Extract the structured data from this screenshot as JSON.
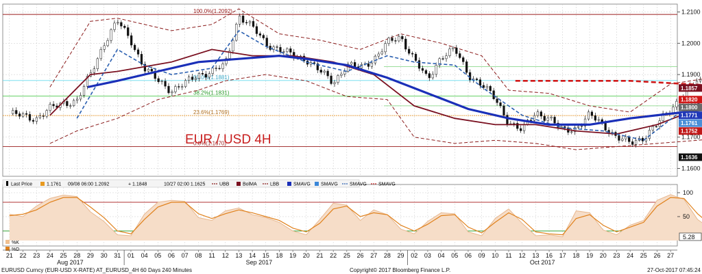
{
  "chart_data": {
    "type": "candlestick",
    "title": "EUR / USD 4H",
    "y_axis": {
      "range": [
        1.1575,
        1.2125
      ],
      "ticks": [
        "1.2100",
        "1.2000",
        "1.1900",
        "1.1800",
        "1.1700",
        "1.1600"
      ],
      "grid": true
    },
    "x_axis": {
      "days": [
        "21",
        "22",
        "23",
        "24",
        "25",
        "28",
        "29",
        "30",
        "31",
        "01",
        "04",
        "05",
        "06",
        "07",
        "08",
        "11",
        "12",
        "13",
        "14",
        "15",
        "18",
        "19",
        "20",
        "21",
        "22",
        "25",
        "26",
        "27",
        "28",
        "29",
        "02",
        "03",
        "04",
        "05",
        "06",
        "09",
        "10",
        "11",
        "12",
        "13",
        "16",
        "17",
        "18",
        "19",
        "20",
        "23",
        "24",
        "25",
        "26",
        "27"
      ],
      "months": [
        {
          "label": "Aug 2017",
          "at_day_index": 5
        },
        {
          "label": "Sep 2017",
          "at_day_index": 19
        },
        {
          "label": "Oct 2017",
          "at_day_index": 40
        }
      ]
    },
    "price_path": [
      [
        0,
        1.1775
      ],
      [
        2,
        1.176
      ],
      [
        3,
        1.179
      ],
      [
        4,
        1.181
      ],
      [
        5,
        1.1815
      ],
      [
        6,
        1.19
      ],
      [
        7,
        1.2
      ],
      [
        8,
        1.207
      ],
      [
        9,
        1.201
      ],
      [
        10,
        1.192
      ],
      [
        11,
        1.188
      ],
      [
        12,
        1.185
      ],
      [
        13,
        1.187
      ],
      [
        14,
        1.19
      ],
      [
        15,
        1.191
      ],
      [
        16,
        1.193
      ],
      [
        17,
        1.209
      ],
      [
        18,
        1.205
      ],
      [
        19,
        1.2
      ],
      [
        20,
        1.198
      ],
      [
        21,
        1.196
      ],
      [
        22,
        1.195
      ],
      [
        23,
        1.191
      ],
      [
        24,
        1.1875
      ],
      [
        25,
        1.193
      ],
      [
        26,
        1.192
      ],
      [
        27,
        1.195
      ],
      [
        28,
        1.2
      ],
      [
        29,
        1.202
      ],
      [
        30,
        1.195
      ],
      [
        31,
        1.188
      ],
      [
        32,
        1.196
      ],
      [
        33,
        1.198
      ],
      [
        34,
        1.19
      ],
      [
        35,
        1.187
      ],
      [
        36,
        1.182
      ],
      [
        37,
        1.175
      ],
      [
        38,
        1.172
      ],
      [
        39,
        1.178
      ],
      [
        40,
        1.176
      ],
      [
        41,
        1.172
      ],
      [
        42,
        1.173
      ],
      [
        43,
        1.177
      ],
      [
        44,
        1.174
      ],
      [
        45,
        1.17
      ],
      [
        46,
        1.168
      ],
      [
        47,
        1.17
      ],
      [
        48,
        1.174
      ],
      [
        49,
        1.179
      ],
      [
        50,
        1.184
      ],
      [
        51,
        1.188
      ],
      [
        52,
        1.185
      ],
      [
        53,
        1.182
      ],
      [
        54,
        1.18
      ],
      [
        55,
        1.176
      ],
      [
        56,
        1.179
      ],
      [
        57,
        1.186
      ],
      [
        58,
        1.182
      ],
      [
        59,
        1.179
      ],
      [
        60,
        1.177
      ],
      [
        61,
        1.176
      ],
      [
        62,
        1.183
      ],
      [
        63,
        1.18
      ],
      [
        63.6,
        1.168
      ],
      [
        64,
        1.164
      ]
    ],
    "indicators": {
      "sma_blue": [
        [
          5.8,
          1.186
        ],
        [
          8,
          1.188
        ],
        [
          11,
          1.191
        ],
        [
          14,
          1.194
        ],
        [
          17,
          1.195
        ],
        [
          20,
          1.196
        ],
        [
          22,
          1.195
        ],
        [
          25,
          1.193
        ],
        [
          28,
          1.189
        ],
        [
          31,
          1.184
        ],
        [
          34,
          1.179
        ],
        [
          37,
          1.176
        ],
        [
          40,
          1.174
        ],
        [
          43,
          1.174
        ],
        [
          46,
          1.176
        ],
        [
          49,
          1.1775
        ],
        [
          52,
          1.179
        ],
        [
          55,
          1.18
        ],
        [
          58,
          1.181
        ],
        [
          61,
          1.18
        ],
        [
          63,
          1.179
        ],
        [
          64.5,
          1.1775
        ]
      ],
      "bollinger_ma": [
        [
          3,
          1.177
        ],
        [
          6,
          1.19
        ],
        [
          8,
          1.191
        ],
        [
          12,
          1.194
        ],
        [
          15,
          1.198
        ],
        [
          18,
          1.196
        ],
        [
          21,
          1.196
        ],
        [
          24,
          1.194
        ],
        [
          27,
          1.19
        ],
        [
          30,
          1.18
        ],
        [
          33,
          1.176
        ],
        [
          36,
          1.174
        ],
        [
          39,
          1.174
        ],
        [
          42,
          1.172
        ],
        [
          45,
          1.171
        ],
        [
          48,
          1.174
        ],
        [
          51,
          1.179
        ],
        [
          54,
          1.178
        ],
        [
          57,
          1.178
        ],
        [
          60,
          1.177
        ],
        [
          63,
          1.178
        ],
        [
          64.5,
          1.177
        ]
      ],
      "bollinger_upper": [
        [
          3,
          1.186
        ],
        [
          6,
          1.207
        ],
        [
          8,
          1.208
        ],
        [
          12,
          1.204
        ],
        [
          15,
          1.206
        ],
        [
          17,
          1.211
        ],
        [
          20,
          1.203
        ],
        [
          23,
          1.201
        ],
        [
          26,
          1.198
        ],
        [
          29,
          1.203
        ],
        [
          32,
          1.2
        ],
        [
          35,
          1.196
        ],
        [
          37,
          1.185
        ],
        [
          40,
          1.184
        ],
        [
          43,
          1.18
        ],
        [
          46,
          1.178
        ],
        [
          49,
          1.187
        ],
        [
          52,
          1.189
        ],
        [
          55,
          1.188
        ],
        [
          58,
          1.188
        ],
        [
          61,
          1.186
        ],
        [
          63,
          1.184
        ],
        [
          64.5,
          1.186
        ]
      ],
      "bollinger_lower": [
        [
          3,
          1.168
        ],
        [
          5,
          1.172
        ],
        [
          8,
          1.176
        ],
        [
          11,
          1.182
        ],
        [
          14,
          1.185
        ],
        [
          16,
          1.188
        ],
        [
          19,
          1.19
        ],
        [
          22,
          1.188
        ],
        [
          25,
          1.183
        ],
        [
          28,
          1.182
        ],
        [
          30,
          1.17
        ],
        [
          33,
          1.168
        ],
        [
          36,
          1.169
        ],
        [
          39,
          1.168
        ],
        [
          42,
          1.166
        ],
        [
          45,
          1.167
        ],
        [
          48,
          1.168
        ],
        [
          51,
          1.169
        ],
        [
          54,
          1.17
        ],
        [
          57,
          1.17
        ],
        [
          60,
          1.169
        ],
        [
          63,
          1.169
        ],
        [
          64.5,
          1.164
        ]
      ],
      "sma_dashed_blue": [
        [
          5,
          1.176
        ],
        [
          8,
          1.198
        ],
        [
          10,
          1.193
        ],
        [
          12,
          1.19
        ],
        [
          15,
          1.192
        ],
        [
          17,
          1.204
        ],
        [
          19,
          1.199
        ],
        [
          22,
          1.194
        ],
        [
          25,
          1.191
        ],
        [
          28,
          1.196
        ],
        [
          30,
          1.194
        ],
        [
          33,
          1.193
        ],
        [
          35,
          1.186
        ],
        [
          38,
          1.177
        ],
        [
          41,
          1.173
        ],
        [
          44,
          1.172
        ],
        [
          47,
          1.169
        ],
        [
          50,
          1.179
        ],
        [
          53,
          1.184
        ],
        [
          56,
          1.179
        ],
        [
          58,
          1.182
        ],
        [
          61,
          1.179
        ],
        [
          63,
          1.179
        ],
        [
          64.5,
          1.168
        ]
      ],
      "sma_red_dashed": [
        [
          37.5,
          1.188
        ],
        [
          42,
          1.188
        ],
        [
          46,
          1.188
        ],
        [
          50,
          1.187
        ],
        [
          54,
          1.186
        ],
        [
          58,
          1.185
        ],
        [
          62,
          1.183
        ],
        [
          64.5,
          1.182
        ]
      ]
    },
    "fib_levels": [
      {
        "label": "100.0%(1.2092)",
        "value": 1.2092
      },
      {
        "label": "50.0%(1.1881)",
        "value": 1.1881
      },
      {
        "label": "38.2%(1.1831)",
        "value": 1.1831
      },
      {
        "label": "23.6%(1.1769)",
        "value": 1.1769
      },
      {
        "label": "0.0%(1.1670)",
        "value": 1.167
      }
    ],
    "price_badges": [
      {
        "label": "1.1857",
        "value": 1.1857,
        "color": "#7a1020"
      },
      {
        "label": "1.1820",
        "value": 1.182,
        "color": "#d01818"
      },
      {
        "label": "1.1800",
        "value": 1.18,
        "color": "#6a6a6a"
      },
      {
        "label": "1.1771",
        "value": 1.1771,
        "color": "#2038b8"
      },
      {
        "label": "1.1761",
        "value": 1.1761,
        "color": "#4a8fd8"
      },
      {
        "label": "1.1752",
        "value": 1.1752,
        "color": "#c01818"
      },
      {
        "label": "1.1636",
        "value": 1.1636,
        "color": "#111111"
      }
    ],
    "legend": [
      {
        "label": "Last Price",
        "icon": "candle",
        "color": "#000000"
      },
      {
        "label": "1.1761",
        "icon": "square",
        "color": "#e89a20"
      },
      {
        "label": "09/08 06:00 1.2092",
        "icon": "none",
        "color": "#000000"
      },
      {
        "label": "+ 1.1848",
        "icon": "none",
        "color": "#000000"
      },
      {
        "label": "10/27 02:00 1.1625",
        "icon": "none",
        "color": "#000000"
      },
      {
        "label": "UBB",
        "icon": "dashed",
        "color": "#8a1a1a"
      },
      {
        "label": "BolMA",
        "icon": "square",
        "color": "#7a1020"
      },
      {
        "label": "LBB",
        "icon": "dashed",
        "color": "#8a1a1a"
      },
      {
        "label": "SMAVG",
        "icon": "square",
        "color": "#1a2fb8"
      },
      {
        "label": "SMAVG",
        "icon": "square",
        "color": "#3a86d8"
      },
      {
        "label": "SMAVG",
        "icon": "dashed",
        "color": "#2a5fb0"
      },
      {
        "label": "SMAVG",
        "icon": "dashed",
        "color": "#c82a2a"
      }
    ],
    "oscillator": {
      "ticks": [
        "100",
        "50"
      ],
      "badge": "5.28",
      "legend": [
        {
          "label": "%K",
          "color": "#f0c090"
        },
        {
          "label": "%D",
          "color": "#e0801a"
        }
      ],
      "k": [
        [
          0,
          55
        ],
        [
          1,
          50
        ],
        [
          2,
          72
        ],
        [
          3,
          88
        ],
        [
          4,
          95
        ],
        [
          5,
          92
        ],
        [
          6,
          60
        ],
        [
          7,
          40
        ],
        [
          8,
          12
        ],
        [
          9,
          10
        ],
        [
          10,
          55
        ],
        [
          11,
          80
        ],
        [
          12,
          84
        ],
        [
          13,
          82
        ],
        [
          14,
          48
        ],
        [
          15,
          42
        ],
        [
          16,
          62
        ],
        [
          17,
          68
        ],
        [
          18,
          54
        ],
        [
          19,
          48
        ],
        [
          20,
          38
        ],
        [
          21,
          20
        ],
        [
          22,
          12
        ],
        [
          23,
          44
        ],
        [
          24,
          78
        ],
        [
          25,
          74
        ],
        [
          26,
          42
        ],
        [
          27,
          64
        ],
        [
          28,
          54
        ],
        [
          29,
          24
        ],
        [
          30,
          14
        ],
        [
          31,
          40
        ],
        [
          32,
          58
        ],
        [
          33,
          56
        ],
        [
          34,
          18
        ],
        [
          35,
          10
        ],
        [
          36,
          46
        ],
        [
          37,
          66
        ],
        [
          38,
          36
        ],
        [
          39,
          10
        ],
        [
          40,
          12
        ],
        [
          41,
          8
        ],
        [
          42,
          62
        ],
        [
          43,
          58
        ],
        [
          44,
          22
        ],
        [
          45,
          12
        ],
        [
          46,
          32
        ],
        [
          47,
          42
        ],
        [
          48,
          84
        ],
        [
          49,
          96
        ],
        [
          50,
          86
        ],
        [
          51,
          44
        ],
        [
          52,
          24
        ],
        [
          53,
          12
        ],
        [
          54,
          14
        ],
        [
          55,
          46
        ],
        [
          56,
          42
        ],
        [
          57,
          24
        ],
        [
          58,
          20
        ],
        [
          59,
          8
        ],
        [
          60,
          14
        ],
        [
          61,
          24
        ],
        [
          62,
          94
        ],
        [
          63,
          86
        ],
        [
          64,
          6
        ]
      ],
      "d": [
        [
          0,
          52
        ],
        [
          1,
          55
        ],
        [
          2,
          64
        ],
        [
          3,
          80
        ],
        [
          4,
          90
        ],
        [
          5,
          90
        ],
        [
          6,
          70
        ],
        [
          7,
          48
        ],
        [
          8,
          20
        ],
        [
          9,
          14
        ],
        [
          10,
          44
        ],
        [
          11,
          70
        ],
        [
          12,
          80
        ],
        [
          13,
          80
        ],
        [
          14,
          56
        ],
        [
          15,
          46
        ],
        [
          16,
          56
        ],
        [
          17,
          64
        ],
        [
          18,
          58
        ],
        [
          19,
          50
        ],
        [
          20,
          42
        ],
        [
          21,
          26
        ],
        [
          22,
          18
        ],
        [
          23,
          36
        ],
        [
          24,
          66
        ],
        [
          25,
          72
        ],
        [
          26,
          50
        ],
        [
          27,
          58
        ],
        [
          28,
          54
        ],
        [
          29,
          32
        ],
        [
          30,
          20
        ],
        [
          31,
          34
        ],
        [
          32,
          52
        ],
        [
          33,
          54
        ],
        [
          34,
          28
        ],
        [
          35,
          16
        ],
        [
          36,
          38
        ],
        [
          37,
          58
        ],
        [
          38,
          44
        ],
        [
          39,
          18
        ],
        [
          40,
          14
        ],
        [
          41,
          12
        ],
        [
          42,
          46
        ],
        [
          43,
          54
        ],
        [
          44,
          32
        ],
        [
          45,
          18
        ],
        [
          46,
          28
        ],
        [
          47,
          38
        ],
        [
          48,
          72
        ],
        [
          49,
          90
        ],
        [
          50,
          88
        ],
        [
          51,
          56
        ],
        [
          52,
          32
        ],
        [
          53,
          18
        ],
        [
          54,
          16
        ],
        [
          55,
          36
        ],
        [
          56,
          40
        ],
        [
          57,
          30
        ],
        [
          58,
          24
        ],
        [
          59,
          14
        ],
        [
          60,
          14
        ],
        [
          61,
          20
        ],
        [
          62,
          78
        ],
        [
          63,
          86
        ],
        [
          64,
          20
        ]
      ]
    }
  },
  "footer": {
    "left": "EURUSD Curncy (EUR-USD X-RATE) AT_EURUSD_4H 60 Days 240 Minutes",
    "center": "Copyright© 2017 Bloomberg Finance L.P.",
    "right": "27-Oct-2017 07:45:24"
  }
}
